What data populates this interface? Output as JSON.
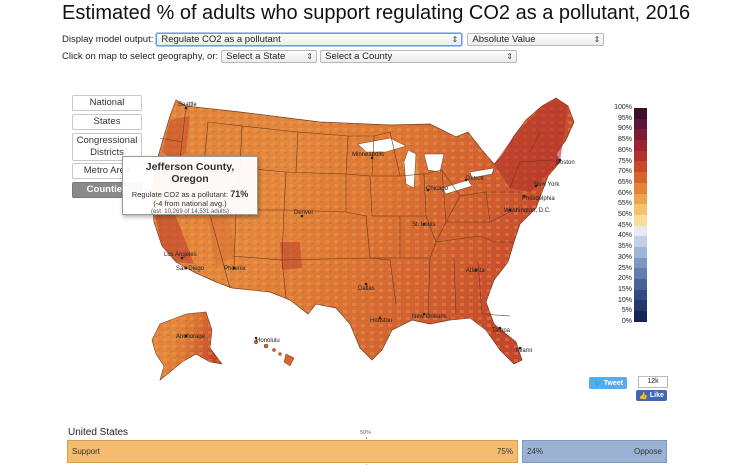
{
  "title": "Estimated % of adults who support regulating CO2 as a pollutant, 2016",
  "controls": {
    "display_label": "Display model output:",
    "output_value": "Regulate CO2 as a pollutant",
    "value_type": "Absolute Value",
    "click_label": "Click on map to select geography, or:",
    "state_value": "Select a State",
    "county_value": "Select a County"
  },
  "geo_buttons": {
    "national": "National",
    "states": "States",
    "congressional": "Congressional Districts",
    "metro": "Metro Area",
    "counties": "Counties"
  },
  "tooltip": {
    "title": "Jefferson County, Oregon",
    "line_label": "Regulate CO2 as a pollutant:",
    "value": "71%",
    "diff": "(-4 from national avg.)",
    "est": "(est. 10,269 of 14,531 adults)"
  },
  "map": {
    "cities": [
      "Seattle",
      "Minneapolis",
      "Boston",
      "Detroit",
      "Chicago",
      "New York",
      "Philadelphia",
      "Washington, D.C.",
      "Denver",
      "St. Louis",
      "Los Angeles",
      "San Diego",
      "Phoenix",
      "Atlanta",
      "Dallas",
      "Houston",
      "New Orleans",
      "Tampa",
      "Miami",
      "Anchorage",
      "Honolulu"
    ],
    "colors": {
      "water": "#ffffff",
      "land_low": "#e8893a",
      "land_high": "#c0402f",
      "border": "#6b3b1e"
    }
  },
  "legend": {
    "labels": [
      "100%",
      "95%",
      "90%",
      "85%",
      "80%",
      "75%",
      "70%",
      "65%",
      "60%",
      "55%",
      "50%",
      "45%",
      "40%",
      "35%",
      "30%",
      "25%",
      "20%",
      "15%",
      "10%",
      "5%",
      "0%"
    ],
    "colors": [
      "#3b0f2e",
      "#5e1436",
      "#7f1a35",
      "#9c2231",
      "#b3302b",
      "#c64a2a",
      "#d6642d",
      "#e38537",
      "#eda44d",
      "#f4c36d",
      "#f8dd9c",
      "#e6ebf2",
      "#c3d0e3",
      "#a0b4d3",
      "#7f98c1",
      "#607dae",
      "#466398",
      "#314c82",
      "#21386b",
      "#152655"
    ]
  },
  "share": {
    "tweet": "Tweet",
    "like_count": "12k",
    "like": "Like"
  },
  "summary": {
    "title": "United States",
    "half_label": "50%",
    "support_label": "Support",
    "support_value": "75%",
    "oppose_label": "Oppose",
    "oppose_value": "24%"
  }
}
